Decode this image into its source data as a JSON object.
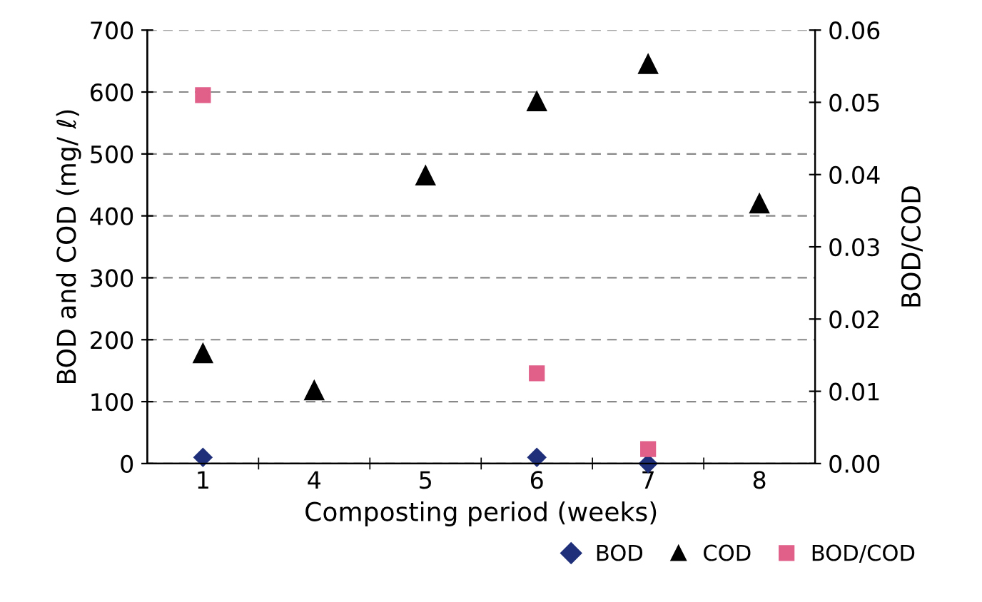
{
  "chart_data": {
    "type": "scatter",
    "xlabel": "Composting period (weeks)",
    "ylabel": "BOD and COD (mg/ ℓ)",
    "y2label": "BOD/COD",
    "categories": [
      "1",
      "4",
      "5",
      "6",
      "7",
      "8"
    ],
    "series": [
      {
        "name": "BOD",
        "color": "#1f2f7a",
        "marker": "diamond",
        "values": [
          10,
          null,
          null,
          10,
          0,
          null
        ]
      },
      {
        "name": "COD",
        "color": "#000000",
        "marker": "triangle",
        "values": [
          178,
          118,
          465,
          585,
          645,
          420
        ]
      },
      {
        "name": "BOD/COD",
        "color": "#e0608a",
        "marker": "square",
        "axis": "y2",
        "values": [
          0.051,
          null,
          null,
          0.0125,
          0.002,
          null
        ]
      }
    ],
    "ylim": [
      0,
      700
    ],
    "yticks": [
      0,
      100,
      200,
      300,
      400,
      500,
      600,
      700
    ],
    "y2lim": [
      0,
      0.06
    ],
    "y2ticks": [
      {
        "value": 0,
        "label": "0.00"
      },
      {
        "value": 0.01,
        "label": "0.01"
      },
      {
        "value": 0.02,
        "label": "0.02"
      },
      {
        "value": 0.03,
        "label": "0.03"
      },
      {
        "value": 0.04,
        "label": "0.04"
      },
      {
        "value": 0.05,
        "label": "0.05"
      },
      {
        "value": 0.06,
        "label": "0.06"
      }
    ],
    "grid": "y",
    "legend": "bottom right"
  }
}
